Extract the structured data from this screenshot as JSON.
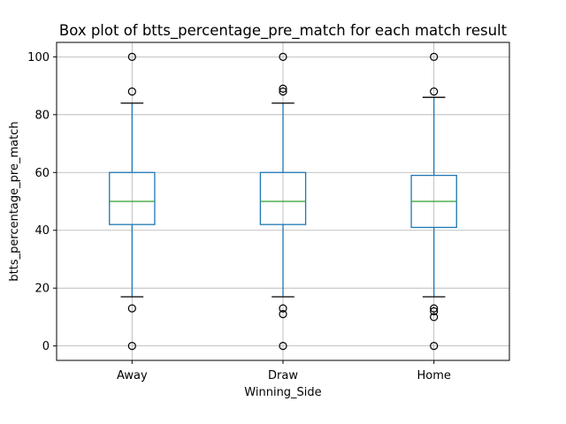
{
  "chart_data": {
    "type": "box",
    "title": "Box plot of btts_percentage_pre_match for each match result",
    "xlabel": "Winning_Side",
    "ylabel": "btts_percentage_pre_match",
    "categories": [
      "Away",
      "Draw",
      "Home"
    ],
    "ylim": [
      -5,
      105
    ],
    "yticks": [
      0,
      20,
      40,
      60,
      80,
      100
    ],
    "grid": true,
    "colors": {
      "box": "#1f77b4",
      "median": "#2ca02c",
      "caps": "#000000",
      "grid": "#b0b0b0"
    },
    "boxes": [
      {
        "category": "Away",
        "whisker_low": 17,
        "q1": 42,
        "median": 50,
        "q3": 60,
        "whisker_high": 84,
        "outliers": [
          0,
          13,
          88,
          100
        ]
      },
      {
        "category": "Draw",
        "whisker_low": 17,
        "q1": 42,
        "median": 50,
        "q3": 60,
        "whisker_high": 84,
        "outliers": [
          0,
          11,
          13,
          88,
          89,
          100
        ]
      },
      {
        "category": "Home",
        "whisker_low": 17,
        "q1": 41,
        "median": 50,
        "q3": 59,
        "whisker_high": 86,
        "outliers": [
          0,
          10,
          12,
          13,
          88,
          100
        ]
      }
    ]
  }
}
